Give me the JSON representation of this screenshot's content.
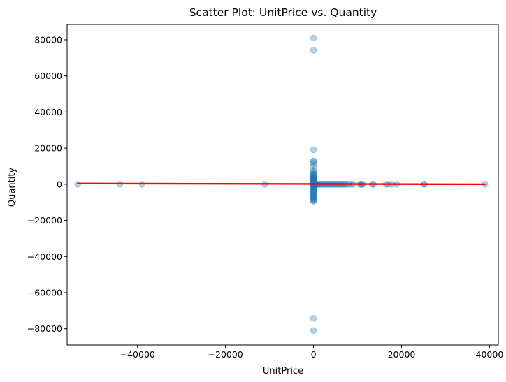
{
  "chart_data": {
    "type": "scatter",
    "title": "Scatter Plot: UnitPrice vs. Quantity",
    "xlabel": "UnitPrice",
    "ylabel": "Quantity",
    "xlim": [
      -56000,
      42000
    ],
    "ylim": [
      -89000,
      88500
    ],
    "xticks": [
      -40000,
      -20000,
      0,
      20000,
      40000
    ],
    "xtick_labels": [
      "−40000",
      "−20000",
      "0",
      "20000",
      "40000"
    ],
    "yticks": [
      -80000,
      -60000,
      -40000,
      -20000,
      0,
      20000,
      40000,
      60000,
      80000
    ],
    "ytick_labels": [
      "−80000",
      "−60000",
      "−40000",
      "−20000",
      "0",
      "20000",
      "40000",
      "60000",
      "80000"
    ],
    "grid": false,
    "colors": {
      "points": "#1f77b4",
      "trend": "#ff0000"
    },
    "series": [
      {
        "points": [
          [
            0,
            80995
          ],
          [
            0,
            74215
          ],
          [
            0,
            19152
          ],
          [
            0,
            12960
          ],
          [
            0,
            12540
          ],
          [
            0,
            11500
          ],
          [
            0,
            10000
          ],
          [
            0,
            8000
          ],
          [
            0,
            7000
          ],
          [
            0,
            6000
          ],
          [
            0,
            5500
          ],
          [
            0,
            5000
          ],
          [
            0,
            4800
          ],
          [
            0,
            4300
          ],
          [
            0,
            4000
          ],
          [
            0,
            3600
          ],
          [
            0,
            3186
          ],
          [
            0,
            3000
          ],
          [
            0,
            2880
          ],
          [
            0,
            2400
          ],
          [
            0,
            2000
          ],
          [
            0,
            1600
          ],
          [
            0,
            1400
          ],
          [
            0,
            1200
          ],
          [
            0,
            1000
          ],
          [
            0,
            800
          ],
          [
            0,
            600
          ],
          [
            0,
            400
          ],
          [
            0,
            200
          ],
          [
            0,
            0
          ],
          [
            0,
            -200
          ],
          [
            0,
            -500
          ],
          [
            0,
            -800
          ],
          [
            0,
            -1200
          ],
          [
            0,
            -1500
          ],
          [
            0,
            -2000
          ],
          [
            0,
            -2500
          ],
          [
            0,
            -3000
          ],
          [
            0,
            -3500
          ],
          [
            0,
            -4000
          ],
          [
            0,
            -4500
          ],
          [
            0,
            -5000
          ],
          [
            0,
            -5500
          ],
          [
            0,
            -6000
          ],
          [
            0,
            -6500
          ],
          [
            0,
            -7000
          ],
          [
            0,
            -7500
          ],
          [
            0,
            -8000
          ],
          [
            0,
            -8500
          ],
          [
            0,
            -9000
          ],
          [
            0,
            -9360
          ],
          [
            0,
            -74215
          ],
          [
            0,
            -80995
          ],
          [
            -53594,
            0
          ],
          [
            -44032,
            0
          ],
          [
            -38926,
            0
          ],
          [
            -11062,
            0
          ],
          [
            100,
            0
          ],
          [
            250,
            0
          ],
          [
            400,
            0
          ],
          [
            600,
            0
          ],
          [
            800,
            0
          ],
          [
            1000,
            0
          ],
          [
            1200,
            0
          ],
          [
            1500,
            0
          ],
          [
            1800,
            0
          ],
          [
            2100,
            0
          ],
          [
            2400,
            0
          ],
          [
            2700,
            0
          ],
          [
            3000,
            0
          ],
          [
            3300,
            0
          ],
          [
            3600,
            0
          ],
          [
            3900,
            0
          ],
          [
            4200,
            0
          ],
          [
            4500,
            0
          ],
          [
            4800,
            0
          ],
          [
            5100,
            0
          ],
          [
            5400,
            0
          ],
          [
            5700,
            0
          ],
          [
            6000,
            0
          ],
          [
            6300,
            0
          ],
          [
            6600,
            0
          ],
          [
            6900,
            0
          ],
          [
            7200,
            0
          ],
          [
            7500,
            0
          ],
          [
            8000,
            0
          ],
          [
            8500,
            0
          ],
          [
            9000,
            0
          ],
          [
            10500,
            0
          ],
          [
            10800,
            0
          ],
          [
            11000,
            0
          ],
          [
            11200,
            0
          ],
          [
            13400,
            0
          ],
          [
            13600,
            0
          ],
          [
            16500,
            0
          ],
          [
            17000,
            0
          ],
          [
            17800,
            0
          ],
          [
            18900,
            0
          ],
          [
            25100,
            0
          ],
          [
            25200,
            0
          ],
          [
            38970,
            0
          ]
        ]
      }
    ],
    "trend_line": {
      "x": [
        -53594,
        38970
      ],
      "y": [
        420,
        -20
      ]
    }
  }
}
